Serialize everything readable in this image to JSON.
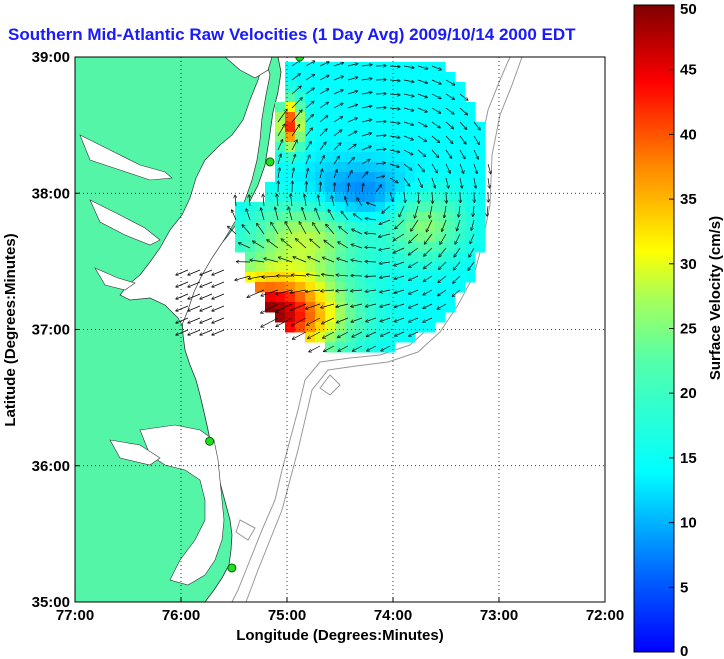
{
  "title": "Southern Mid-Atlantic Raw Velocities (1 Day Avg) 2009/10/14 2000 EDT",
  "colors": {
    "land": "#55f5a8",
    "title": "#1a1aff",
    "ocean": "#ffffff",
    "coast": "#333333",
    "bathymetry": "#999999",
    "station": "#22dd22"
  },
  "map": {
    "x_axis_label": "Longitude (Degrees:Minutes)",
    "y_axis_label": "Latitude (Degrees:Minutes)",
    "x_ticks": [
      {
        "value": -77,
        "label": "77:00"
      },
      {
        "value": -76,
        "label": "76:00"
      },
      {
        "value": -75,
        "label": "75:00"
      },
      {
        "value": -74,
        "label": "74:00"
      },
      {
        "value": -73,
        "label": "73:00"
      },
      {
        "value": -72,
        "label": "72:00"
      }
    ],
    "y_ticks": [
      {
        "value": 35,
        "label": "35:00"
      },
      {
        "value": 36,
        "label": "36:00"
      },
      {
        "value": 37,
        "label": "37:00"
      },
      {
        "value": 38,
        "label": "38:00"
      },
      {
        "value": 39,
        "label": "39:00"
      }
    ],
    "lon_range": [
      -77,
      -72
    ],
    "lat_range": [
      35,
      39
    ],
    "grid": "dotted",
    "stations": [
      {
        "lon": -74.88,
        "lat": 39.0
      },
      {
        "lon": -75.16,
        "lat": 38.23
      },
      {
        "lon": -75.73,
        "lat": 36.18
      },
      {
        "lon": -75.52,
        "lat": 35.25
      }
    ]
  },
  "colorbar": {
    "label": "Surface Velocity (cm/s)",
    "min": 0,
    "max": 50,
    "ticks": [
      {
        "value": 0,
        "label": "0"
      },
      {
        "value": 5,
        "label": "5"
      },
      {
        "value": 10,
        "label": "10"
      },
      {
        "value": 15,
        "label": "15"
      },
      {
        "value": 20,
        "label": "20"
      },
      {
        "value": 25,
        "label": "25"
      },
      {
        "value": 30,
        "label": "30"
      },
      {
        "value": 35,
        "label": "35"
      },
      {
        "value": 40,
        "label": "40"
      },
      {
        "value": 45,
        "label": "45"
      },
      {
        "value": 50,
        "label": "50"
      }
    ],
    "colormap": "jet"
  }
}
